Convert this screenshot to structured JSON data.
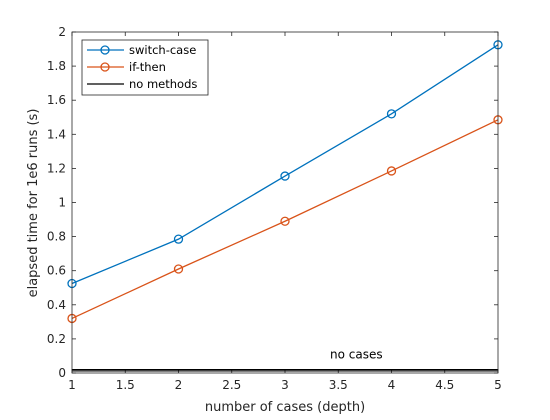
{
  "chart_data": {
    "type": "line",
    "title": "",
    "xlabel": "number of cases (depth)",
    "ylabel": "elapsed time for 1e6 runs (s)",
    "xlim": [
      1,
      5
    ],
    "ylim": [
      0,
      2
    ],
    "x_ticks": [
      1,
      1.5,
      2,
      2.5,
      3,
      3.5,
      4,
      4.5,
      5
    ],
    "y_ticks": [
      0,
      0.2,
      0.4,
      0.6,
      0.8,
      1,
      1.2,
      1.4,
      1.6,
      1.8,
      2
    ],
    "grid": false,
    "legend_position": "top-left",
    "x": [
      1,
      2,
      3,
      4,
      5
    ],
    "series": [
      {
        "name": "switch-case",
        "values": [
          0.525,
          0.785,
          1.155,
          1.52,
          1.925
        ],
        "color": "#0072BD",
        "marker": "circle"
      },
      {
        "name": "if-then",
        "values": [
          0.32,
          0.61,
          0.89,
          1.185,
          1.485
        ],
        "color": "#D95319",
        "marker": "circle"
      },
      {
        "name": "no methods",
        "values": [
          0.02,
          0.02,
          0.02,
          0.02,
          0.02
        ],
        "color": "#000000",
        "marker": "none"
      }
    ],
    "reference_line": {
      "y": 0.012,
      "color": "#000000"
    },
    "annotations": [
      {
        "text": "no cases",
        "x": 3.67,
        "y": 0.085
      }
    ]
  }
}
